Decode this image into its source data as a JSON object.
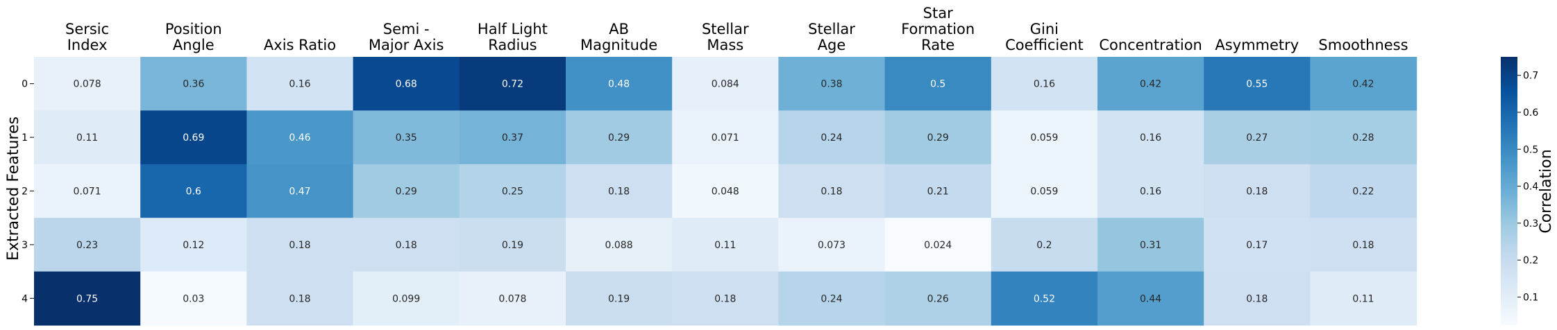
{
  "chart_data": {
    "type": "heatmap",
    "title": "",
    "xlabel": "",
    "ylabel": "Extracted Features",
    "columns": [
      [
        "Sersic",
        "Index"
      ],
      [
        "Position",
        "Angle"
      ],
      [
        "Axis Ratio"
      ],
      [
        "Semi -",
        "Major Axis"
      ],
      [
        "Half Light",
        "Radius"
      ],
      [
        "AB",
        "Magnitude"
      ],
      [
        "Stellar",
        "Mass"
      ],
      [
        "Stellar",
        "Age"
      ],
      [
        "Star",
        "Formation",
        "Rate"
      ],
      [
        "Gini",
        "Coefficient"
      ],
      [
        "Concentration"
      ],
      [
        "Asymmetry"
      ],
      [
        "Smoothness"
      ]
    ],
    "rows": [
      "0",
      "1",
      "2",
      "3",
      "4"
    ],
    "values": [
      [
        0.078,
        0.36,
        0.16,
        0.68,
        0.72,
        0.48,
        0.084,
        0.38,
        0.5,
        0.16,
        0.42,
        0.55,
        0.42
      ],
      [
        0.11,
        0.69,
        0.46,
        0.35,
        0.37,
        0.29,
        0.071,
        0.24,
        0.29,
        0.059,
        0.16,
        0.27,
        0.28
      ],
      [
        0.071,
        0.6,
        0.47,
        0.29,
        0.25,
        0.18,
        0.048,
        0.18,
        0.21,
        0.059,
        0.16,
        0.18,
        0.22
      ],
      [
        0.23,
        0.12,
        0.18,
        0.18,
        0.19,
        0.088,
        0.11,
        0.073,
        0.024,
        0.2,
        0.31,
        0.17,
        0.18
      ],
      [
        0.75,
        0.03,
        0.18,
        0.099,
        0.078,
        0.19,
        0.18,
        0.24,
        0.26,
        0.52,
        0.44,
        0.18,
        0.11
      ]
    ],
    "colormap": "Blues",
    "colormap_stops": [
      "#f7fbff",
      "#deebf7",
      "#c6dbef",
      "#9ecae1",
      "#6baed6",
      "#4292c6",
      "#2171b5",
      "#08519c",
      "#08306b"
    ],
    "vmin": 0.024,
    "vmax": 0.75,
    "colorbar": {
      "label": "Correlation",
      "ticks": [
        "0.1",
        "0.2",
        "0.3",
        "0.4",
        "0.5",
        "0.6",
        "0.7"
      ]
    }
  }
}
